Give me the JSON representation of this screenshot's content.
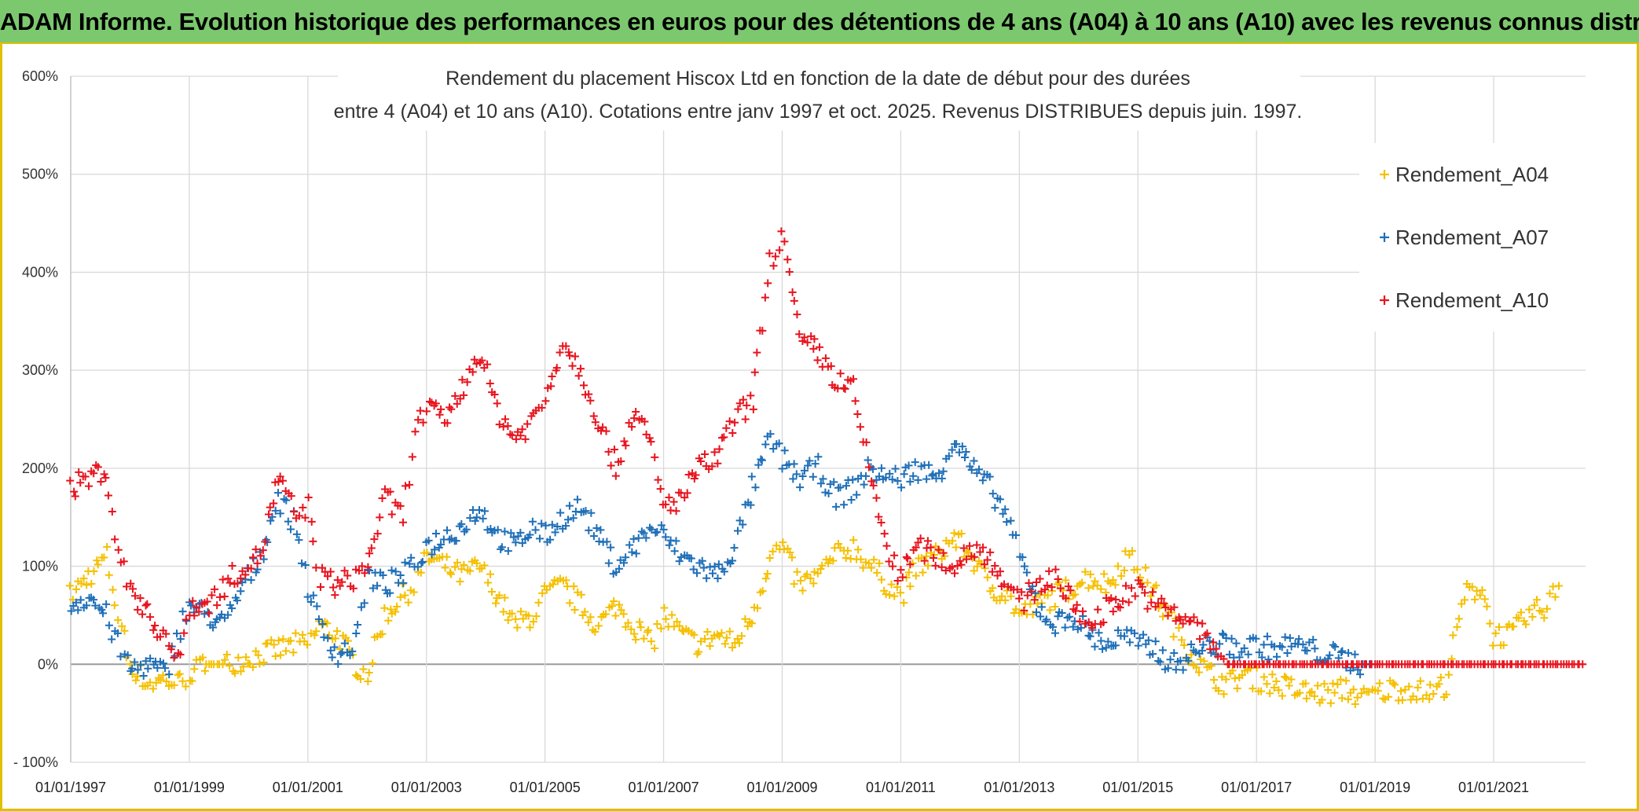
{
  "banner": {
    "title": "ADAM Informe. Evolution historique des performances en euros pour des détentions de 4 ans (A04) à 10 ans (A10) avec les revenus connus distribués",
    "background": "#7cc86e"
  },
  "chart_data": {
    "type": "scatter",
    "title_line1": "Rendement du placement Hiscox Ltd en fonction de la date de début pour des durées",
    "title_line2": "entre 4 (A04) et 10 ans (A10). Cotations entre janv 1997 et oct. 2025. Revenus DISTRIBUES depuis juin. 1997.",
    "xlabel": "",
    "ylabel": "",
    "xlim": [
      1997.0,
      2022.55
    ],
    "ylim": [
      -100,
      600
    ],
    "y_ticks": [
      -100,
      0,
      100,
      200,
      300,
      400,
      500,
      600
    ],
    "y_tick_labels": [
      "- 100%",
      "0%",
      "100%",
      "200%",
      "300%",
      "400%",
      "500%",
      "600%"
    ],
    "x_ticks": [
      1997,
      1999,
      2001,
      2003,
      2005,
      2007,
      2009,
      2011,
      2013,
      2015,
      2017,
      2019,
      2021
    ],
    "x_tick_labels": [
      "01/01/1997",
      "01/01/1999",
      "01/01/2001",
      "01/01/2003",
      "01/01/2005",
      "01/01/2007",
      "01/01/2009",
      "01/01/2011",
      "01/01/2013",
      "01/01/2015",
      "01/01/2017",
      "01/01/2019",
      "01/01/2021"
    ],
    "grid": true,
    "legend_position": "top-right",
    "marker": "+",
    "series": [
      {
        "name": "Rendement_A04",
        "color": "#f5c000",
        "x": [
          1997.0,
          1997.3,
          1997.6,
          1997.8,
          1998.0,
          1998.3,
          1998.6,
          1998.8,
          1999.0,
          1999.3,
          1999.6,
          1999.9,
          2000.2,
          2000.5,
          2000.8,
          2001.0,
          2001.2,
          2001.5,
          2001.8,
          2002.0,
          2002.3,
          2002.6,
          2002.8,
          2003.0,
          2003.3,
          2003.6,
          2003.9,
          2004.2,
          2004.5,
          2004.8,
          2005.0,
          2005.3,
          2005.6,
          2005.9,
          2006.2,
          2006.5,
          2006.8,
          2007.0,
          2007.3,
          2007.6,
          2007.9,
          2008.2,
          2008.5,
          2008.8,
          2009.0,
          2009.3,
          2009.6,
          2009.9,
          2010.2,
          2010.5,
          2010.8,
          2011.0,
          2011.3,
          2011.6,
          2011.9,
          2012.2,
          2012.5,
          2012.8,
          2013.0,
          2013.3,
          2013.6,
          2013.9,
          2014.2,
          2014.5,
          2014.8,
          2015.0,
          2015.3,
          2015.6,
          2015.9,
          2016.2,
          2016.5,
          2016.8,
          2017.0,
          2017.3,
          2017.6,
          2017.9,
          2018.2,
          2018.5,
          2018.8,
          2019.0,
          2019.3,
          2019.6,
          2019.9,
          2020.2,
          2020.5,
          2020.8,
          2021.0,
          2021.3,
          2021.6,
          2021.9,
          2022.1
        ],
        "values": [
          70,
          90,
          110,
          50,
          0,
          -20,
          -15,
          -20,
          -10,
          0,
          0,
          5,
          10,
          15,
          20,
          20,
          40,
          30,
          0,
          -10,
          50,
          70,
          80,
          110,
          100,
          90,
          100,
          70,
          40,
          50,
          70,
          80,
          60,
          40,
          60,
          40,
          20,
          50,
          30,
          20,
          30,
          20,
          50,
          110,
          120,
          80,
          90,
          110,
          120,
          100,
          80,
          70,
          100,
          110,
          130,
          110,
          80,
          70,
          50,
          60,
          70,
          80,
          90,
          80,
          110,
          100,
          70,
          40,
          10,
          -10,
          -20,
          -10,
          -15,
          -20,
          -25,
          -30,
          -30,
          -25,
          -35,
          -30,
          -25,
          -25,
          -30,
          -20,
          70,
          80,
          30,
          30,
          50,
          60,
          80
        ]
      },
      {
        "name": "Rendement_A07",
        "color": "#1f6fb8",
        "x": [
          1997.0,
          1997.3,
          1997.6,
          1997.8,
          1998.0,
          1998.3,
          1998.6,
          1998.8,
          1999.0,
          1999.3,
          1999.6,
          1999.9,
          2000.2,
          2000.5,
          2000.8,
          2001.0,
          2001.2,
          2001.5,
          2001.8,
          2002.0,
          2002.3,
          2002.6,
          2002.8,
          2003.0,
          2003.3,
          2003.6,
          2003.9,
          2004.2,
          2004.5,
          2004.8,
          2005.0,
          2005.3,
          2005.6,
          2005.9,
          2006.2,
          2006.5,
          2006.8,
          2007.0,
          2007.3,
          2007.6,
          2007.9,
          2008.2,
          2008.5,
          2008.8,
          2009.0,
          2009.3,
          2009.6,
          2009.9,
          2010.2,
          2010.5,
          2010.8,
          2011.0,
          2011.3,
          2011.6,
          2011.9,
          2012.2,
          2012.5,
          2012.8,
          2013.0,
          2013.3,
          2013.6,
          2013.9,
          2014.2,
          2014.5,
          2014.8,
          2015.0,
          2015.3,
          2015.6,
          2015.9,
          2016.2,
          2016.5,
          2016.8,
          2017.0,
          2017.3,
          2017.6,
          2017.9,
          2018.2,
          2018.5,
          2018.8,
          2019.0
        ],
        "values": [
          60,
          70,
          50,
          20,
          -5,
          0,
          -10,
          30,
          60,
          50,
          40,
          80,
          110,
          170,
          140,
          80,
          40,
          10,
          20,
          90,
          80,
          90,
          100,
          120,
          130,
          140,
          160,
          130,
          120,
          140,
          130,
          150,
          160,
          130,
          100,
          120,
          140,
          130,
          110,
          100,
          90,
          120,
          180,
          230,
          210,
          190,
          200,
          170,
          180,
          200,
          190,
          190,
          200,
          190,
          230,
          200,
          180,
          150,
          110,
          60,
          40,
          50,
          30,
          20,
          30,
          20,
          15,
          0,
          10,
          20,
          20,
          15,
          20,
          15,
          20,
          15,
          10,
          5,
          0,
          0
        ]
      },
      {
        "name": "Rendement_A10",
        "color": "#e8141e",
        "x": [
          1997.0,
          1997.3,
          1997.6,
          1997.8,
          1998.0,
          1998.3,
          1998.6,
          1998.8,
          1999.0,
          1999.3,
          1999.6,
          1999.9,
          2000.2,
          2000.5,
          2000.8,
          2001.0,
          2001.2,
          2001.5,
          2001.8,
          2002.0,
          2002.3,
          2002.6,
          2002.8,
          2003.0,
          2003.3,
          2003.6,
          2003.9,
          2004.2,
          2004.5,
          2004.8,
          2005.0,
          2005.3,
          2005.6,
          2005.9,
          2006.2,
          2006.5,
          2006.8,
          2007.0,
          2007.3,
          2007.6,
          2007.9,
          2008.2,
          2008.5,
          2008.8,
          2009.0,
          2009.3,
          2009.6,
          2009.9,
          2010.2,
          2010.5,
          2010.8,
          2011.0,
          2011.3,
          2011.6,
          2011.9,
          2012.2,
          2012.5,
          2012.8,
          2013.0,
          2013.3,
          2013.6,
          2013.9,
          2014.2,
          2014.5,
          2014.8,
          2015.0,
          2015.3,
          2015.6,
          2015.9,
          2016.5,
          2017.0,
          2017.5,
          2018.0,
          2018.5,
          2019.0,
          2019.5,
          2020.0,
          2020.5,
          2021.0,
          2021.5,
          2022.0,
          2022.5
        ],
        "values": [
          180,
          190,
          200,
          110,
          80,
          50,
          30,
          0,
          60,
          60,
          80,
          100,
          110,
          190,
          150,
          160,
          90,
          80,
          90,
          100,
          170,
          150,
          240,
          260,
          250,
          280,
          320,
          260,
          230,
          250,
          270,
          330,
          300,
          250,
          200,
          260,
          220,
          160,
          170,
          200,
          210,
          250,
          270,
          410,
          440,
          330,
          320,
          290,
          280,
          190,
          110,
          90,
          120,
          110,
          100,
          120,
          110,
          80,
          60,
          80,
          90,
          60,
          40,
          60,
          70,
          80,
          60,
          50,
          45,
          0,
          0,
          0,
          0,
          0,
          0,
          0,
          0,
          0,
          0,
          0,
          0,
          0
        ]
      }
    ]
  }
}
